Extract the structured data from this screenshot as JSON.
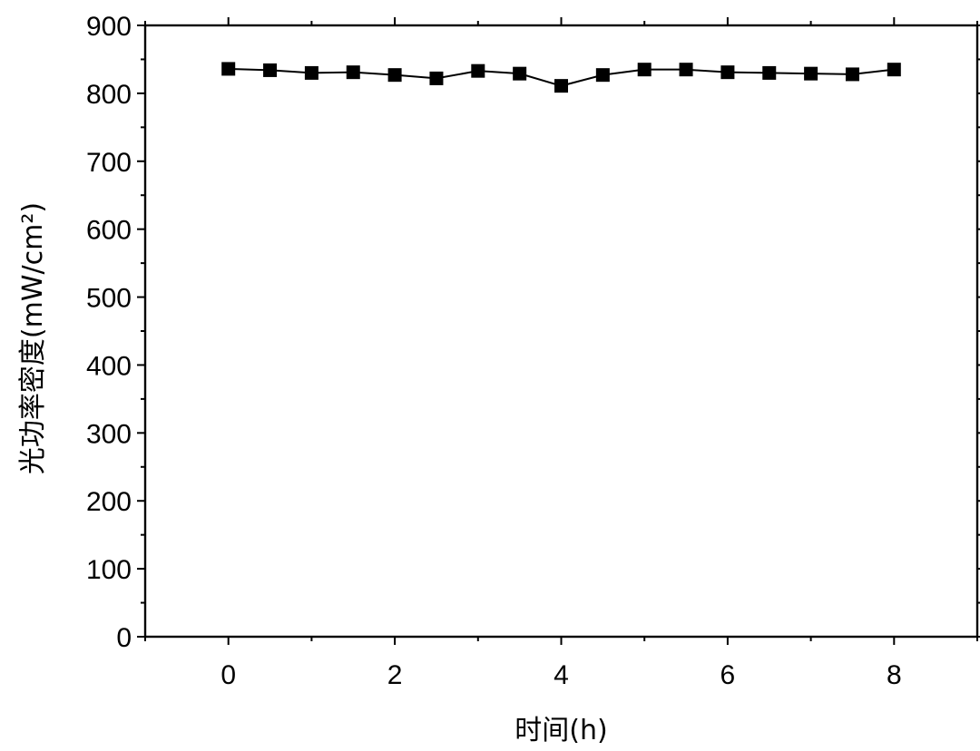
{
  "chart_data": {
    "type": "line",
    "title": "",
    "xlabel": "时间(h)",
    "ylabel": "光功率密度(mW/cm²)",
    "xlim": [
      -1,
      9
    ],
    "ylim": [
      0,
      900
    ],
    "xticks": [
      0,
      2,
      4,
      6,
      8
    ],
    "yticks": [
      0,
      100,
      200,
      300,
      400,
      500,
      600,
      700,
      800,
      900
    ],
    "grid": false,
    "legend": "none",
    "marker": "square",
    "color": "#000000",
    "series": [
      {
        "x": [
          0,
          0.5,
          1,
          1.5,
          2,
          2.5,
          3,
          3.5,
          4,
          4.5,
          5,
          5.5,
          6,
          6.5,
          7,
          7.5,
          8
        ],
        "values": [
          836,
          834,
          830,
          831,
          827,
          822,
          833,
          829,
          811,
          827,
          835,
          835,
          831,
          830,
          829,
          828,
          835
        ]
      }
    ]
  }
}
